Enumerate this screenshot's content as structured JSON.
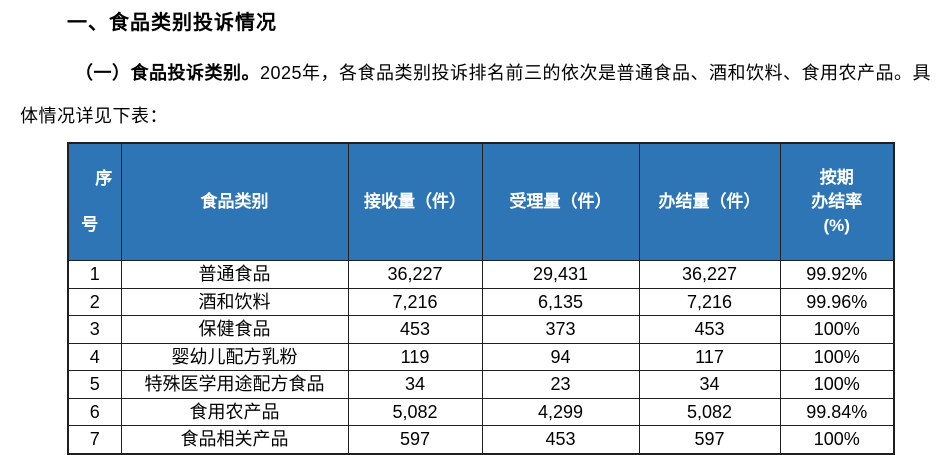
{
  "heading": "一、食品类别投诉情况",
  "paragraph": {
    "lead_bold": "（一）食品投诉类别。",
    "line1_rest": "2025年，各食品类别投诉排名前三的依次是普通食品、酒和饮料、食用农产品。具",
    "line2": "体情况详见下表："
  },
  "table": {
    "headers": [
      "序号",
      "食品类别",
      "接收量（件）",
      "受理量（件）",
      "办结量（件）",
      "按期\n办结率\n(%)"
    ],
    "col_keys": [
      "seq",
      "category",
      "received",
      "accepted",
      "completed",
      "on-time-rate"
    ],
    "rows": [
      [
        "1",
        "普通食品",
        "36,227",
        "29,431",
        "36,227",
        "99.92%"
      ],
      [
        "2",
        "酒和饮料",
        "7,216",
        "6,135",
        "7,216",
        "99.96%"
      ],
      [
        "3",
        "保健食品",
        "453",
        "373",
        "453",
        "100%"
      ],
      [
        "4",
        "婴幼儿配方乳粉",
        "119",
        "94",
        "117",
        "100%"
      ],
      [
        "5",
        "特殊医学用途配方食品",
        "34",
        "23",
        "34",
        "100%"
      ],
      [
        "6",
        "食用农产品",
        "5,082",
        "4,299",
        "5,082",
        "99.84%"
      ],
      [
        "7",
        "食品相关产品",
        "597",
        "453",
        "597",
        "100%"
      ]
    ]
  },
  "colors": {
    "header_bg": "#2E75B6",
    "header_fg": "#FFFFFF",
    "grid": "#1F1F1F",
    "page_bg": "#FFFFFF",
    "text": "#000000"
  }
}
